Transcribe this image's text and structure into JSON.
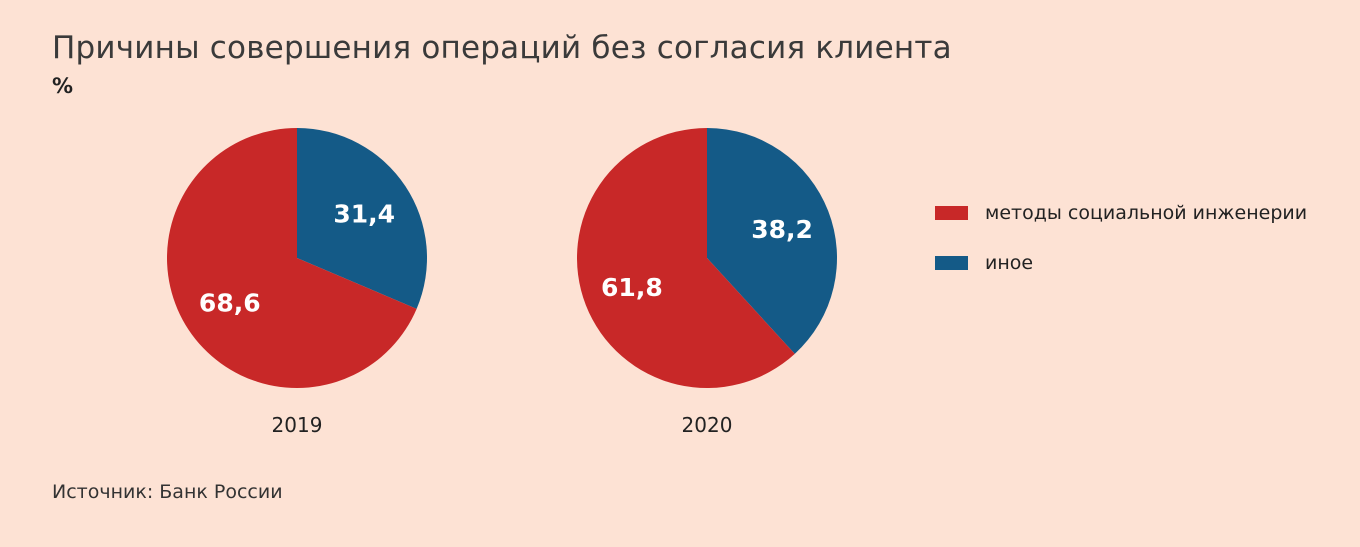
{
  "title": "Причины совершения операций без согласия клиента",
  "unit": "%",
  "source": "Источник: Банк России",
  "colors": {
    "background": "#fde2d4",
    "social_engineering": "#c82828",
    "other": "#145a87",
    "slice_label": "#ffffff"
  },
  "legend": [
    {
      "label": "методы социальной инженерии",
      "color": "#c82828"
    },
    {
      "label": "иное",
      "color": "#145a87"
    }
  ],
  "chart_data": [
    {
      "type": "pie",
      "title": "2019",
      "slices": [
        {
          "name": "методы социальной инженерии",
          "value": 68.6,
          "label": "68,6"
        },
        {
          "name": "иное",
          "value": 31.4,
          "label": "31,4"
        }
      ]
    },
    {
      "type": "pie",
      "title": "2020",
      "slices": [
        {
          "name": "методы социальной инженерии",
          "value": 61.8,
          "label": "61,8"
        },
        {
          "name": "иное",
          "value": 38.2,
          "label": "38,2"
        }
      ]
    }
  ]
}
